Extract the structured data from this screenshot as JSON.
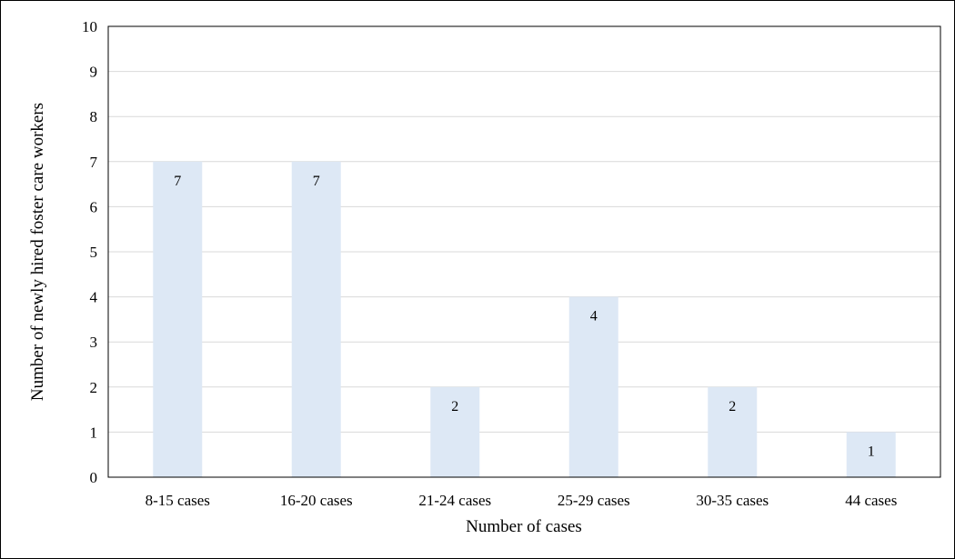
{
  "chart_data": {
    "type": "bar",
    "title": "",
    "xlabel": "Number of cases",
    "ylabel": "Number of newly hired foster care workers",
    "categories": [
      "8-15 cases",
      "16-20 cases",
      "21-24 cases",
      "25-29 cases",
      "30-35 cases",
      "44 cases"
    ],
    "values": [
      7,
      7,
      2,
      4,
      2,
      1
    ],
    "data_labels": [
      "7",
      "7",
      "2",
      "4",
      "2",
      "1"
    ],
    "ylim": [
      0,
      10
    ],
    "yticks": [
      "0",
      "1",
      "2",
      "3",
      "4",
      "5",
      "6",
      "7",
      "8",
      "9",
      "10"
    ],
    "grid": true,
    "legend": "none",
    "colors": {
      "bar": "#dde8f5",
      "gridline": "#d9d9d9",
      "axis": "#000000"
    }
  }
}
